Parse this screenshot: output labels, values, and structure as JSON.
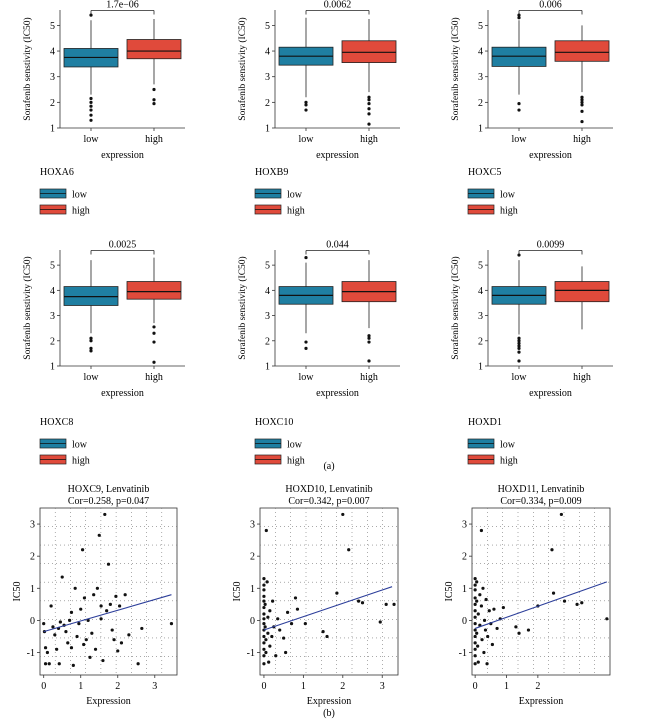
{
  "panel_a_label": "(a)",
  "panel_b_label": "(b)",
  "legend_items": [
    "low",
    "high"
  ],
  "colors": {
    "low": "#1f7fa2",
    "high": "#e04a3b",
    "line": "#2c3e9a",
    "axis": "#333333"
  },
  "chart_data": [
    {
      "type": "boxplot",
      "gene": "HOXA6",
      "pvalue": "1.7e−06",
      "ylabel": "Sorafenib senstivity (IC50)",
      "xlabel": "expression",
      "categories": [
        "low",
        "high"
      ],
      "ylim": [
        1,
        5.6
      ],
      "yticks": [
        1,
        2,
        3,
        4,
        5
      ],
      "boxes": [
        {
          "q1": 3.38,
          "median": 3.75,
          "q3": 4.1,
          "whisker_low": 2.3,
          "whisker_high": 5.2,
          "outliers": [
            2.15,
            2.0,
            1.85,
            1.7,
            1.5,
            1.3,
            5.4
          ]
        },
        {
          "q1": 3.7,
          "median": 4.0,
          "q3": 4.45,
          "whisker_low": 2.7,
          "whisker_high": 5.25,
          "outliers": [
            2.5,
            2.1,
            1.95
          ]
        }
      ]
    },
    {
      "type": "boxplot",
      "gene": "HOXB9",
      "pvalue": "0.0062",
      "ylabel": "Sorafenib senstivity (IC50)",
      "xlabel": "expression",
      "categories": [
        "low",
        "high"
      ],
      "ylim": [
        1,
        5.6
      ],
      "yticks": [
        1,
        2,
        3,
        4,
        5
      ],
      "boxes": [
        {
          "q1": 3.45,
          "median": 3.8,
          "q3": 4.15,
          "whisker_low": 2.2,
          "whisker_high": 5.3,
          "outliers": [
            2.0,
            1.9,
            1.7
          ]
        },
        {
          "q1": 3.55,
          "median": 3.95,
          "q3": 4.4,
          "whisker_low": 2.4,
          "whisker_high": 5.25,
          "outliers": [
            2.2,
            2.1,
            1.95,
            1.75,
            1.55,
            1.15
          ]
        }
      ]
    },
    {
      "type": "boxplot",
      "gene": "HOXC5",
      "pvalue": "0.006",
      "ylabel": "Sorafenib senstivity (IC50)",
      "xlabel": "expression",
      "categories": [
        "low",
        "high"
      ],
      "ylim": [
        1,
        5.6
      ],
      "yticks": [
        1,
        2,
        3,
        4,
        5
      ],
      "boxes": [
        {
          "q1": 3.4,
          "median": 3.8,
          "q3": 4.15,
          "whisker_low": 2.3,
          "whisker_high": 5.2,
          "outliers": [
            1.95,
            1.7,
            5.3,
            5.4
          ]
        },
        {
          "q1": 3.6,
          "median": 3.95,
          "q3": 4.4,
          "whisker_low": 2.4,
          "whisker_high": 5.0,
          "outliers": [
            2.2,
            2.1,
            2.0,
            1.9,
            1.65,
            1.25
          ]
        }
      ]
    },
    {
      "type": "boxplot",
      "gene": "HOXC8",
      "pvalue": "0.0025",
      "ylabel": "Sorafenib senstivity (IC50)",
      "xlabel": "expression",
      "categories": [
        "low",
        "high"
      ],
      "ylim": [
        1,
        5.6
      ],
      "yticks": [
        1,
        2,
        3,
        4,
        5
      ],
      "boxes": [
        {
          "q1": 3.4,
          "median": 3.75,
          "q3": 4.15,
          "whisker_low": 2.3,
          "whisker_high": 5.2,
          "outliers": [
            2.1,
            2.0,
            1.7,
            1.6
          ]
        },
        {
          "q1": 3.65,
          "median": 3.95,
          "q3": 4.35,
          "whisker_low": 2.7,
          "whisker_high": 5.3,
          "outliers": [
            2.55,
            2.3,
            1.95,
            1.15
          ]
        }
      ]
    },
    {
      "type": "boxplot",
      "gene": "HOXC10",
      "pvalue": "0.044",
      "ylabel": "Sorafenib senstivity (IC50)",
      "xlabel": "expression",
      "categories": [
        "low",
        "high"
      ],
      "ylim": [
        1,
        5.6
      ],
      "yticks": [
        1,
        2,
        3,
        4,
        5
      ],
      "boxes": [
        {
          "q1": 3.45,
          "median": 3.8,
          "q3": 4.15,
          "whisker_low": 2.3,
          "whisker_high": 5.1,
          "outliers": [
            1.95,
            1.7,
            5.3
          ]
        },
        {
          "q1": 3.55,
          "median": 3.95,
          "q3": 4.35,
          "whisker_low": 2.5,
          "whisker_high": 5.2,
          "outliers": [
            2.2,
            2.1,
            1.95,
            1.2
          ]
        }
      ]
    },
    {
      "type": "boxplot",
      "gene": "HOXD1",
      "pvalue": "0.0099",
      "ylabel": "Sorafenib senstivity (IC50)",
      "xlabel": "expression",
      "categories": [
        "low",
        "high"
      ],
      "ylim": [
        1,
        5.6
      ],
      "yticks": [
        1,
        2,
        3,
        4,
        5
      ],
      "boxes": [
        {
          "q1": 3.45,
          "median": 3.8,
          "q3": 4.15,
          "whisker_low": 2.25,
          "whisker_high": 5.2,
          "outliers": [
            2.1,
            2.0,
            1.9,
            1.8,
            1.7,
            1.55,
            1.2,
            5.4
          ]
        },
        {
          "q1": 3.55,
          "median": 4.0,
          "q3": 4.35,
          "whisker_low": 2.45,
          "whisker_high": 4.95,
          "outliers": []
        }
      ]
    },
    {
      "type": "scatter",
      "title": "HOXC9, Lenvatinib",
      "subtitle": "Cor=0.258, p=0.047",
      "xlabel": "Expression",
      "ylabel": "IC50",
      "xlim": [
        -0.1,
        3.6
      ],
      "ylim": [
        -1.7,
        3.5
      ],
      "xticks": [
        0,
        1,
        2,
        3
      ],
      "yticks": [
        -1,
        0,
        1,
        2,
        3
      ],
      "fit": {
        "x": [
          0,
          3.45
        ],
        "y": [
          -0.35,
          0.8
        ]
      },
      "points": [
        [
          0.0,
          -0.1
        ],
        [
          0.02,
          -0.35
        ],
        [
          0.05,
          -0.85
        ],
        [
          0.05,
          -1.35
        ],
        [
          0.1,
          -1.0
        ],
        [
          0.15,
          -1.35
        ],
        [
          0.2,
          0.45
        ],
        [
          0.25,
          -0.2
        ],
        [
          0.3,
          -0.45
        ],
        [
          0.35,
          -0.9
        ],
        [
          0.4,
          -0.25
        ],
        [
          0.42,
          -1.35
        ],
        [
          0.45,
          -0.05
        ],
        [
          0.5,
          1.35
        ],
        [
          0.55,
          -0.15
        ],
        [
          0.6,
          -0.35
        ],
        [
          0.65,
          -0.7
        ],
        [
          0.7,
          0.0
        ],
        [
          0.75,
          0.25
        ],
        [
          0.75,
          -0.85
        ],
        [
          0.8,
          -1.4
        ],
        [
          0.85,
          1.0
        ],
        [
          0.9,
          -0.5
        ],
        [
          0.95,
          -0.1
        ],
        [
          1.0,
          0.35
        ],
        [
          1.05,
          2.2
        ],
        [
          1.08,
          -0.75
        ],
        [
          1.1,
          0.7
        ],
        [
          1.15,
          -0.6
        ],
        [
          1.2,
          0.0
        ],
        [
          1.25,
          -1.15
        ],
        [
          1.3,
          -0.4
        ],
        [
          1.35,
          0.8
        ],
        [
          1.4,
          -0.9
        ],
        [
          1.45,
          1.0
        ],
        [
          1.5,
          2.65
        ],
        [
          1.55,
          0.05
        ],
        [
          1.55,
          0.45
        ],
        [
          1.6,
          -1.25
        ],
        [
          1.65,
          3.3
        ],
        [
          1.7,
          0.3
        ],
        [
          1.75,
          1.75
        ],
        [
          1.8,
          0.5
        ],
        [
          1.85,
          -0.3
        ],
        [
          1.9,
          -0.6
        ],
        [
          1.95,
          0.75
        ],
        [
          2.0,
          -0.95
        ],
        [
          2.05,
          0.45
        ],
        [
          2.1,
          -0.7
        ],
        [
          2.2,
          0.8
        ],
        [
          2.3,
          -0.45
        ],
        [
          2.55,
          -1.35
        ],
        [
          2.65,
          -0.25
        ],
        [
          3.45,
          -0.1
        ]
      ]
    },
    {
      "type": "scatter",
      "title": "HOXD10, Lenvatinib",
      "subtitle": "Cor=0.342, p=0.007",
      "xlabel": "Expression",
      "ylabel": "IC50",
      "xlim": [
        -0.1,
        3.4
      ],
      "ylim": [
        -1.7,
        3.5
      ],
      "xticks": [
        0,
        1,
        2,
        3
      ],
      "yticks": [
        -1,
        0,
        1,
        2,
        3
      ],
      "fit": {
        "x": [
          0,
          3.25
        ],
        "y": [
          -0.3,
          1.05
        ]
      },
      "points": [
        [
          0.0,
          1.3
        ],
        [
          0.0,
          1.1
        ],
        [
          0.0,
          0.95
        ],
        [
          0.0,
          0.75
        ],
        [
          0.0,
          0.6
        ],
        [
          0.0,
          0.4
        ],
        [
          0.0,
          0.2
        ],
        [
          0.0,
          0.05
        ],
        [
          0.0,
          -0.1
        ],
        [
          0.0,
          -0.3
        ],
        [
          0.0,
          -0.5
        ],
        [
          0.0,
          -0.7
        ],
        [
          0.0,
          -0.9
        ],
        [
          0.0,
          -1.1
        ],
        [
          0.0,
          -1.35
        ],
        [
          0.03,
          0.5
        ],
        [
          0.03,
          -0.2
        ],
        [
          0.05,
          -0.6
        ],
        [
          0.05,
          -1.0
        ],
        [
          0.06,
          2.8
        ],
        [
          0.08,
          1.2
        ],
        [
          0.1,
          0.1
        ],
        [
          0.1,
          -0.4
        ],
        [
          0.12,
          -1.3
        ],
        [
          0.15,
          0.3
        ],
        [
          0.15,
          -0.8
        ],
        [
          0.2,
          -0.5
        ],
        [
          0.22,
          0.6
        ],
        [
          0.25,
          -0.2
        ],
        [
          0.3,
          -1.1
        ],
        [
          0.35,
          0.05
        ],
        [
          0.4,
          -0.3
        ],
        [
          0.5,
          -0.55
        ],
        [
          0.55,
          -1.0
        ],
        [
          0.6,
          0.25
        ],
        [
          0.7,
          -0.1
        ],
        [
          0.8,
          0.7
        ],
        [
          0.85,
          0.35
        ],
        [
          1.05,
          -0.1
        ],
        [
          1.5,
          -0.35
        ],
        [
          1.6,
          -0.5
        ],
        [
          1.85,
          0.85
        ],
        [
          2.0,
          3.3
        ],
        [
          2.15,
          2.2
        ],
        [
          2.4,
          0.6
        ],
        [
          2.5,
          0.55
        ],
        [
          2.95,
          -0.05
        ],
        [
          3.1,
          0.5
        ],
        [
          3.3,
          0.5
        ]
      ]
    },
    {
      "type": "scatter",
      "title": "HOXD11, Lenvatinib",
      "subtitle": "Cor=0.334, p=0.009",
      "xlabel": "Expression",
      "ylabel": "IC50",
      "xlim": [
        -0.1,
        4.3
      ],
      "ylim": [
        -1.7,
        3.5
      ],
      "xticks": [
        0,
        1,
        2
      ],
      "yticks": [
        -1,
        0,
        1,
        2,
        3
      ],
      "fit": {
        "x": [
          0,
          4.2
        ],
        "y": [
          -0.25,
          1.2
        ]
      },
      "points": [
        [
          0.0,
          1.3
        ],
        [
          0.0,
          1.1
        ],
        [
          0.0,
          0.95
        ],
        [
          0.0,
          0.7
        ],
        [
          0.0,
          0.5
        ],
        [
          0.0,
          0.3
        ],
        [
          0.0,
          0.1
        ],
        [
          0.0,
          -0.1
        ],
        [
          0.0,
          -0.3
        ],
        [
          0.0,
          -0.5
        ],
        [
          0.0,
          -0.7
        ],
        [
          0.0,
          -0.9
        ],
        [
          0.0,
          -1.1
        ],
        [
          0.0,
          -1.35
        ],
        [
          0.05,
          1.2
        ],
        [
          0.05,
          0.6
        ],
        [
          0.05,
          -0.4
        ],
        [
          0.08,
          -0.8
        ],
        [
          0.1,
          0.2
        ],
        [
          0.1,
          -1.3
        ],
        [
          0.15,
          0.8
        ],
        [
          0.15,
          -0.15
        ],
        [
          0.2,
          2.8
        ],
        [
          0.2,
          0.45
        ],
        [
          0.22,
          -0.6
        ],
        [
          0.25,
          1.0
        ],
        [
          0.28,
          -1.0
        ],
        [
          0.3,
          0.0
        ],
        [
          0.33,
          -0.3
        ],
        [
          0.35,
          0.65
        ],
        [
          0.38,
          -1.35
        ],
        [
          0.4,
          -0.5
        ],
        [
          0.45,
          0.3
        ],
        [
          0.5,
          -0.1
        ],
        [
          0.55,
          -0.75
        ],
        [
          0.6,
          0.35
        ],
        [
          0.7,
          -0.25
        ],
        [
          0.8,
          0.05
        ],
        [
          0.9,
          0.4
        ],
        [
          1.3,
          -0.2
        ],
        [
          1.4,
          -0.4
        ],
        [
          1.7,
          -0.3
        ],
        [
          2.0,
          0.45
        ],
        [
          2.45,
          2.2
        ],
        [
          2.5,
          0.85
        ],
        [
          2.75,
          3.3
        ],
        [
          2.85,
          0.6
        ],
        [
          3.25,
          0.5
        ],
        [
          3.4,
          0.55
        ],
        [
          4.2,
          0.05
        ]
      ]
    }
  ]
}
